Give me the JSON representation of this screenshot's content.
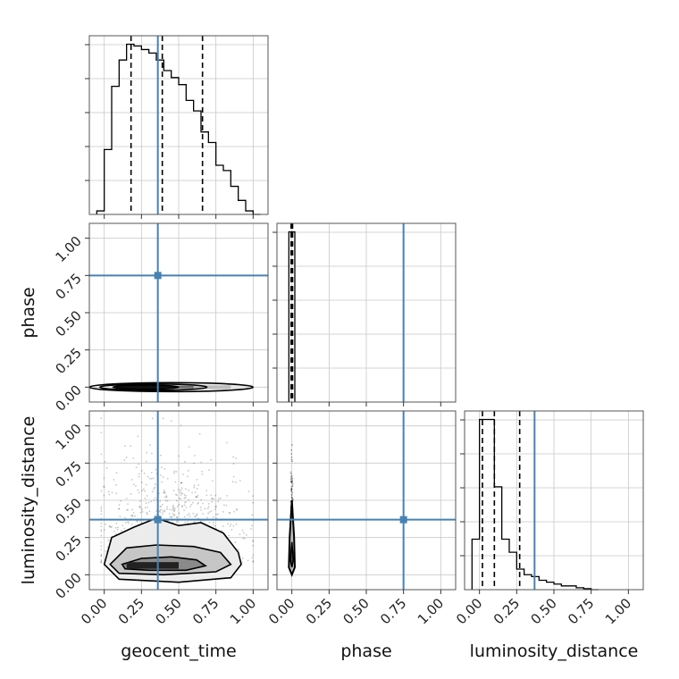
{
  "chart_data": {
    "type": "corner",
    "parameters": [
      "geocent_time",
      "phase",
      "luminosity_distance"
    ],
    "truths": {
      "geocent_time": 0.36,
      "phase": 0.75,
      "luminosity_distance": 0.37
    },
    "axis_range": [
      -0.1,
      1.1
    ],
    "tick_labels": [
      "0.00",
      "0.25",
      "0.50",
      "0.75",
      "1.00"
    ],
    "grid": true,
    "colors": {
      "truth": "#4682b4",
      "hist": "#000000",
      "grid": "#c8c8c8"
    },
    "labels": {
      "x": [
        "geocent_time",
        "phase",
        "luminosity_distance"
      ],
      "y": [
        "phase",
        "luminosity_distance"
      ]
    },
    "marginals": {
      "geocent_time": {
        "bin_edges": [
          -0.05,
          0.0,
          0.05,
          0.1,
          0.15,
          0.2,
          0.25,
          0.3,
          0.35,
          0.4,
          0.45,
          0.5,
          0.55,
          0.6,
          0.65,
          0.7,
          0.75,
          0.8,
          0.85,
          0.9,
          0.95,
          1.0,
          1.05
        ],
        "counts": [
          0.02,
          0.37,
          0.73,
          0.88,
          0.97,
          0.96,
          0.94,
          0.92,
          0.88,
          0.82,
          0.78,
          0.74,
          0.65,
          0.59,
          0.47,
          0.41,
          0.28,
          0.25,
          0.16,
          0.08,
          0.02,
          0.0
        ],
        "quantiles": [
          0.18,
          0.39,
          0.66
        ]
      },
      "phase": {
        "bin_edges": [
          -0.02,
          0.0,
          0.02
        ],
        "counts": [
          1.0,
          1.0
        ],
        "quantiles": [
          -0.005,
          0.0,
          0.005
        ]
      },
      "luminosity_distance": {
        "bin_edges": [
          -0.05,
          0.0,
          0.05,
          0.1,
          0.15,
          0.2,
          0.25,
          0.3,
          0.35,
          0.4,
          0.45,
          0.5,
          0.55,
          0.6,
          0.65,
          0.7,
          0.75,
          0.8
        ],
        "counts": [
          0.27,
          0.91,
          0.91,
          0.55,
          0.27,
          0.2,
          0.11,
          0.08,
          0.07,
          0.05,
          0.04,
          0.03,
          0.02,
          0.02,
          0.01,
          0.005,
          0.0
        ],
        "quantiles": [
          0.02,
          0.1,
          0.27
        ]
      }
    }
  }
}
